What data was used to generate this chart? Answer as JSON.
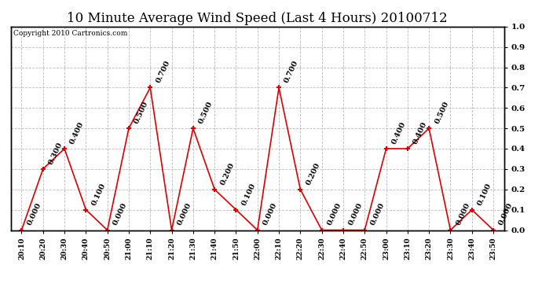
{
  "title": "10 Minute Average Wind Speed (Last 4 Hours) 20100712",
  "copyright": "Copyright 2010 Cartronics.com",
  "x_labels": [
    "20:10",
    "20:20",
    "20:30",
    "20:40",
    "20:50",
    "21:00",
    "21:10",
    "21:20",
    "21:30",
    "21:40",
    "21:50",
    "22:00",
    "22:10",
    "22:20",
    "22:30",
    "22:40",
    "22:50",
    "23:00",
    "23:10",
    "23:20",
    "23:30",
    "23:40",
    "23:50"
  ],
  "y_values": [
    0.0,
    0.3,
    0.4,
    0.1,
    0.0,
    0.5,
    0.7,
    0.0,
    0.5,
    0.2,
    0.1,
    0.0,
    0.7,
    0.2,
    0.0,
    0.0,
    0.0,
    0.4,
    0.4,
    0.5,
    0.0,
    0.1,
    0.0
  ],
  "line_color": "#dd0000",
  "marker_color": "#dd0000",
  "grid_color": "#bbbbbb",
  "bg_color": "#ffffff",
  "title_fontsize": 12,
  "ylim": [
    0.0,
    1.0
  ],
  "yticks": [
    0.0,
    0.1,
    0.2,
    0.3,
    0.4,
    0.5,
    0.6,
    0.7,
    0.8,
    0.9,
    1.0
  ],
  "annotation_fontsize": 7.0,
  "annotation_rotation": 65
}
